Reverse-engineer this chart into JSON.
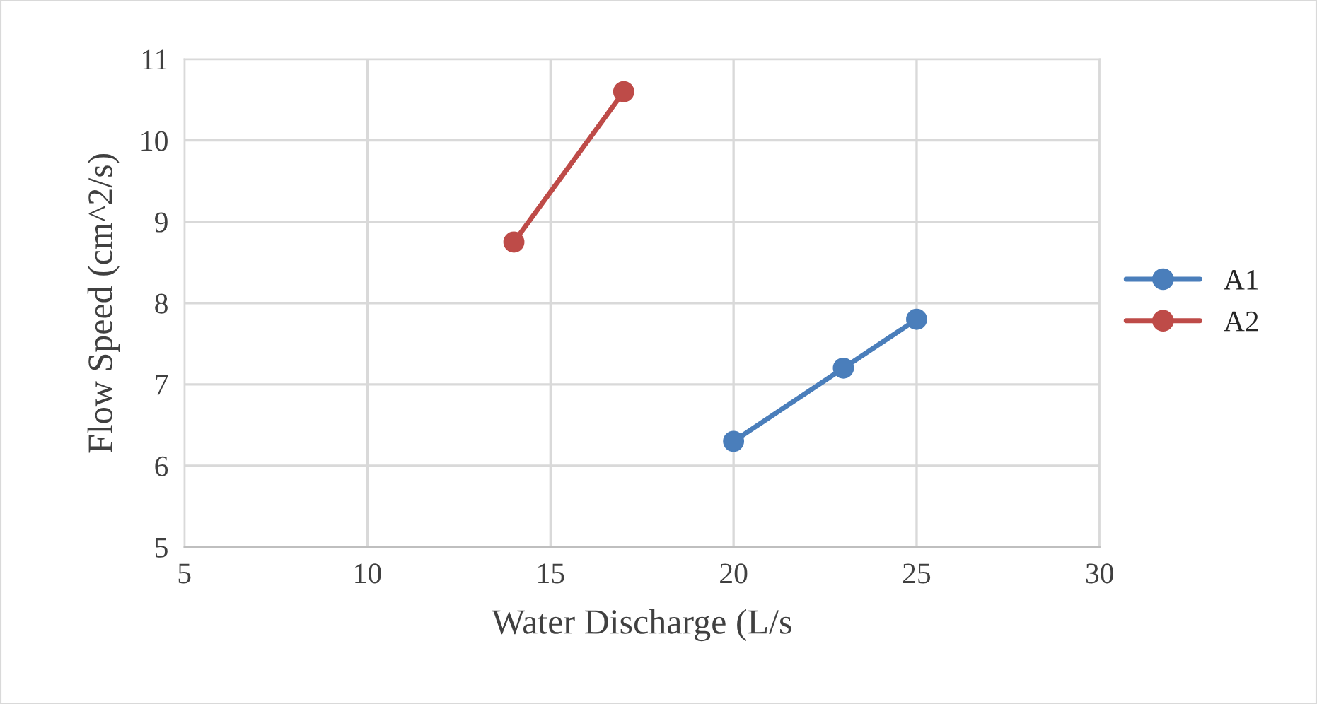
{
  "chart_data": {
    "type": "line",
    "xlabel": "Water Discharge (L/s",
    "ylabel": "Flow Speed (cm^2/s)",
    "series": [
      {
        "name": "A1",
        "color": "#4a7ebb",
        "x": [
          20,
          23,
          25
        ],
        "values": [
          6.3,
          7.2,
          7.8
        ]
      },
      {
        "name": "A2",
        "color": "#be4b48",
        "x": [
          14,
          17
        ],
        "values": [
          8.75,
          10.6
        ]
      }
    ],
    "xlim": [
      5,
      30
    ],
    "xticks": [
      5,
      10,
      15,
      20,
      25,
      30
    ],
    "ylim": [
      5,
      11
    ],
    "yticks": [
      5,
      6,
      7,
      8,
      9,
      10,
      11
    ],
    "grid": true,
    "legend": "right",
    "marker": "circle",
    "line_style": "solid"
  }
}
